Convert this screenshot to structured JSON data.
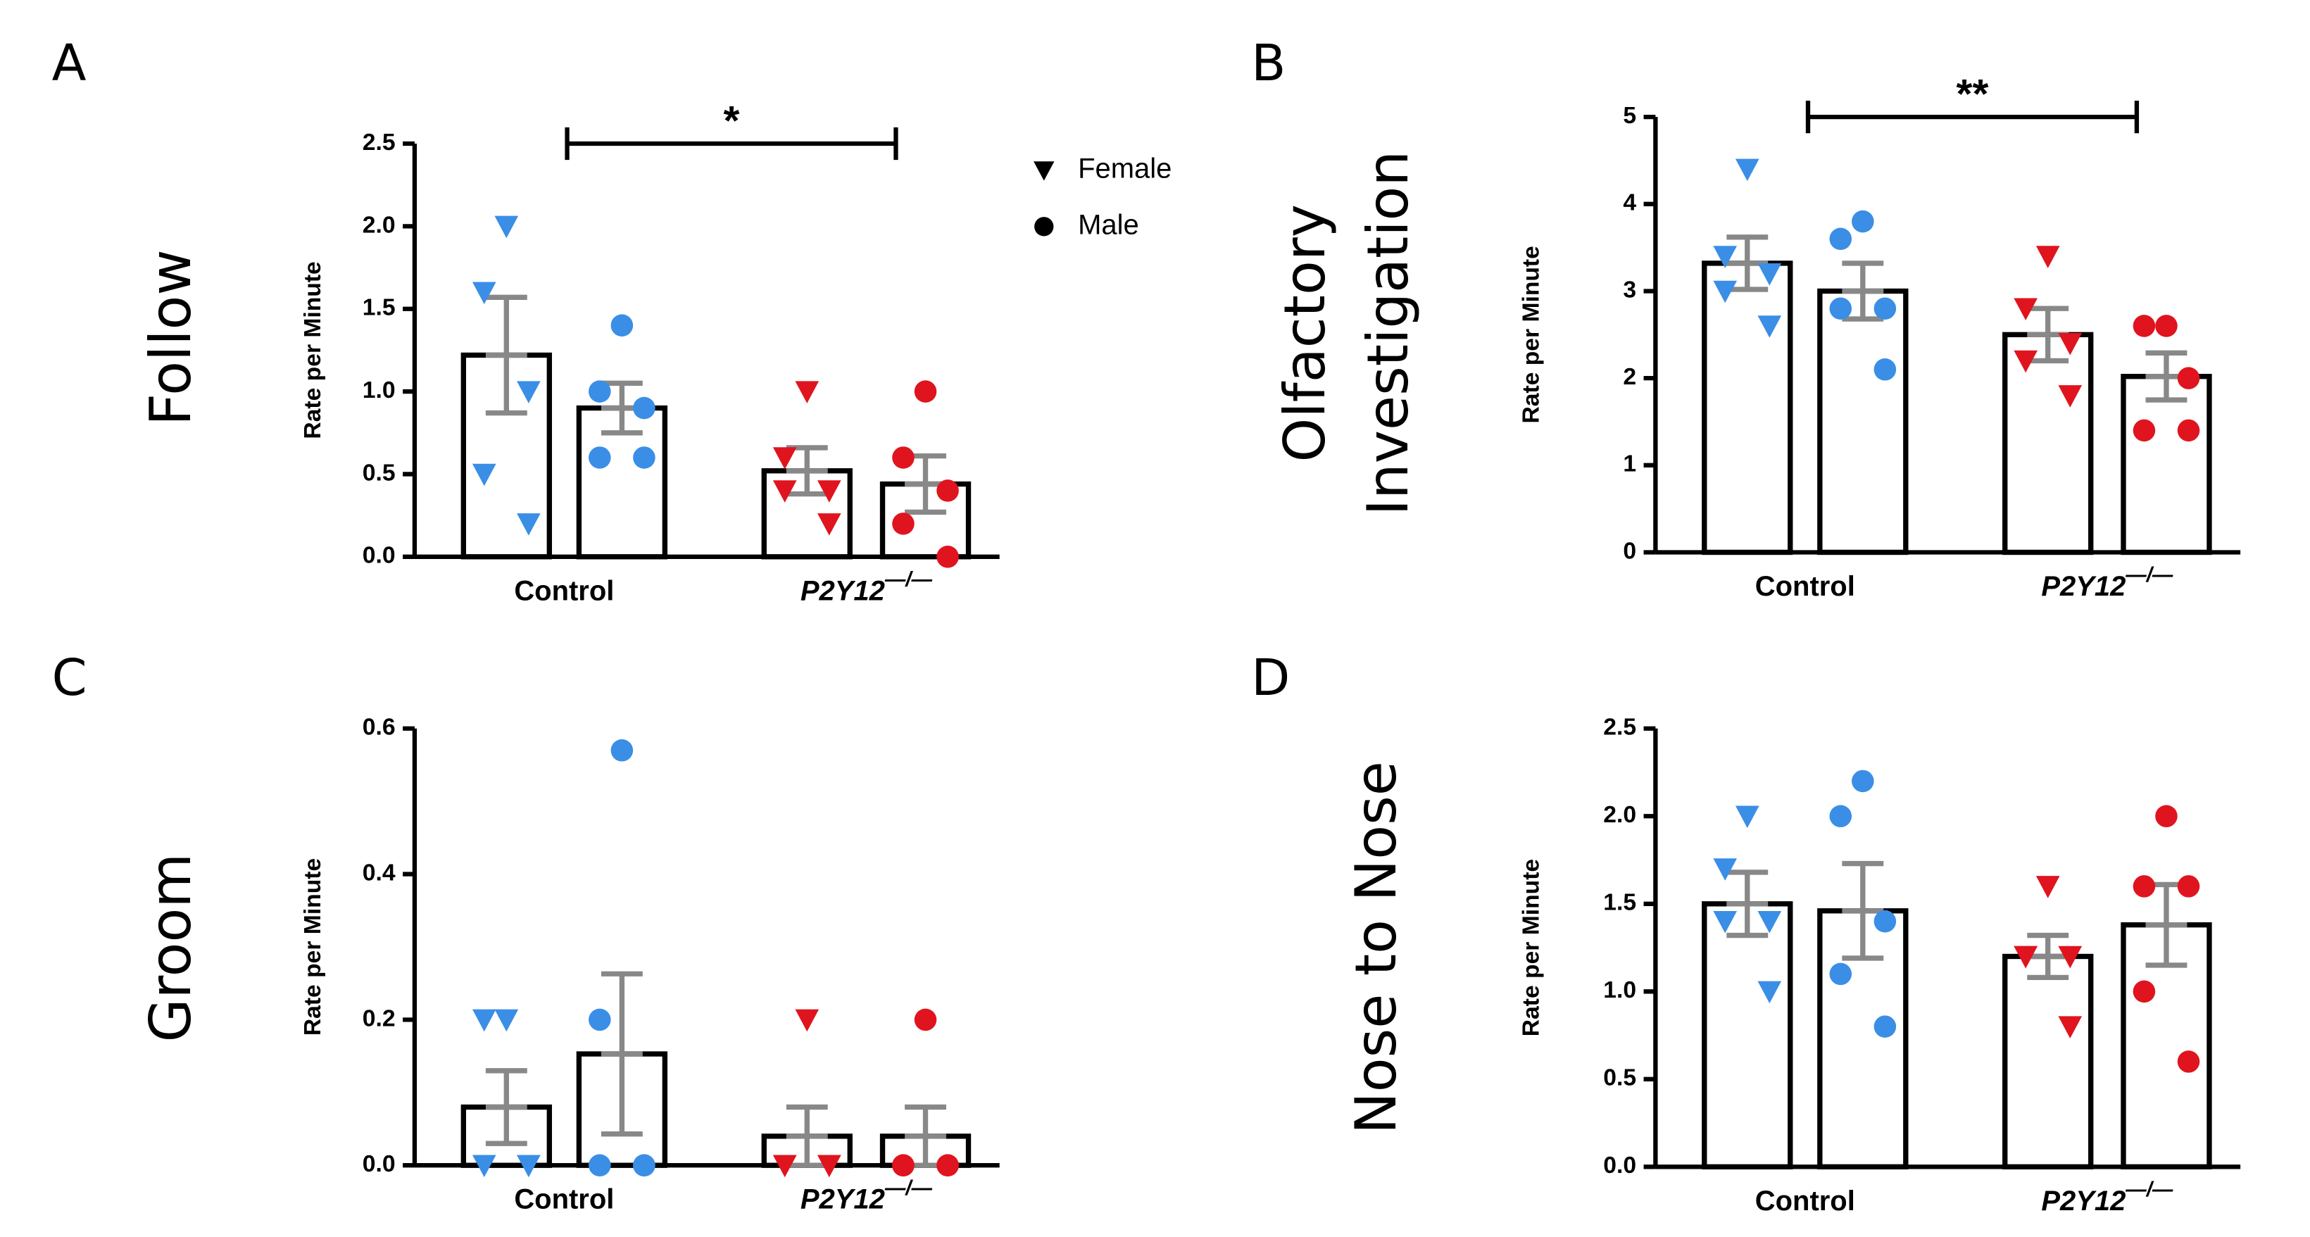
{
  "chart_data": [
    {
      "type": "bar",
      "panel": "A",
      "title_lines": [
        "Follow"
      ],
      "ylabel": "Rate per Minute",
      "categories": [
        "Control",
        "P2Y12"
      ],
      "category_superscripts": [
        null,
        "—/—"
      ],
      "category_italic": [
        false,
        true
      ],
      "group_colors": [
        "#3a8ee6",
        "#e0141e"
      ],
      "ylim": [
        0,
        2.5
      ],
      "yticks": [
        {
          "value": 0,
          "label": "0.0"
        },
        0.5,
        {
          "value": 1,
          "label": "1.0"
        },
        1.5,
        {
          "value": 2,
          "label": "2.0"
        },
        2.5
      ],
      "legend": "upper right",
      "significance": "*",
      "series": [
        {
          "name": "Female",
          "marker": "triangle",
          "values": [
            1.22,
            0.52
          ],
          "errors": [
            0.35,
            0.14
          ],
          "points": [
            [
              2.0,
              1.6,
              1.0,
              0.5,
              0.2
            ],
            [
              1.0,
              0.6,
              0.4,
              0.4,
              0.2
            ]
          ]
        },
        {
          "name": "Male",
          "marker": "circle",
          "values": [
            0.9,
            0.44
          ],
          "errors": [
            0.15,
            0.17
          ],
          "points": [
            [
              1.4,
              1.0,
              0.9,
              0.6,
              0.6
            ],
            [
              1.0,
              0.6,
              0.4,
              0.2,
              0.0
            ]
          ]
        }
      ]
    },
    {
      "type": "bar",
      "panel": "B",
      "title_lines": [
        "Olfactory",
        "Investigation"
      ],
      "ylabel": "Rate per Minute",
      "categories": [
        "Control",
        "P2Y12"
      ],
      "category_superscripts": [
        null,
        "—/—"
      ],
      "category_italic": [
        false,
        true
      ],
      "group_colors": [
        "#3a8ee6",
        "#e0141e"
      ],
      "ylim": [
        0,
        5
      ],
      "yticks": [
        0,
        1,
        2,
        3,
        4,
        5
      ],
      "significance": "**",
      "series": [
        {
          "name": "Female",
          "marker": "triangle",
          "values": [
            3.32,
            2.5
          ],
          "errors": [
            0.3,
            0.3
          ],
          "points": [
            [
              4.4,
              3.4,
              3.2,
              3.0,
              2.6
            ],
            [
              3.4,
              2.8,
              2.4,
              2.2,
              1.8
            ]
          ]
        },
        {
          "name": "Male",
          "marker": "circle",
          "values": [
            3.0,
            2.02
          ],
          "errors": [
            0.32,
            0.27
          ],
          "points": [
            [
              3.8,
              3.6,
              2.8,
              2.8,
              2.1
            ],
            [
              2.6,
              2.6,
              2.0,
              1.4,
              1.4
            ]
          ]
        }
      ]
    },
    {
      "type": "bar",
      "panel": "C",
      "title_lines": [
        "Groom"
      ],
      "ylabel": "Rate per Minute",
      "categories": [
        "Control",
        "P2Y12"
      ],
      "category_superscripts": [
        null,
        "—/—"
      ],
      "category_italic": [
        false,
        true
      ],
      "group_colors": [
        "#3a8ee6",
        "#e0141e"
      ],
      "ylim": [
        0,
        0.6
      ],
      "yticks": [
        {
          "value": 0,
          "label": "0.0"
        },
        0.2,
        0.4,
        0.6
      ],
      "series": [
        {
          "name": "Female",
          "marker": "triangle",
          "values": [
            0.08,
            0.04
          ],
          "errors": [
            0.05,
            0.04
          ],
          "points": [
            [
              0.2,
              0.2,
              0,
              0,
              0
            ],
            [
              0.2,
              0,
              0,
              0,
              0
            ]
          ]
        },
        {
          "name": "Male",
          "marker": "circle",
          "values": [
            0.153,
            0.04
          ],
          "errors": [
            0.11,
            0.04
          ],
          "points": [
            [
              0.57,
              0.2,
              0,
              0,
              0
            ],
            [
              0.2,
              0,
              0,
              0,
              0
            ]
          ]
        }
      ]
    },
    {
      "type": "bar",
      "panel": "D",
      "title_lines": [
        "Nose to Nose"
      ],
      "ylabel": "Rate per Minute",
      "categories": [
        "Control",
        "P2Y12"
      ],
      "category_superscripts": [
        null,
        "—/—"
      ],
      "category_italic": [
        false,
        true
      ],
      "group_colors": [
        "#3a8ee6",
        "#e0141e"
      ],
      "ylim": [
        0,
        2.5
      ],
      "yticks": [
        {
          "value": 0,
          "label": "0.0"
        },
        0.5,
        {
          "value": 1,
          "label": "1.0"
        },
        1.5,
        {
          "value": 2,
          "label": "2.0"
        },
        2.5
      ],
      "series": [
        {
          "name": "Female",
          "marker": "triangle",
          "values": [
            1.5,
            1.2
          ],
          "errors": [
            0.18,
            0.12
          ],
          "points": [
            [
              2.0,
              1.7,
              1.4,
              1.4,
              1.0
            ],
            [
              1.6,
              1.2,
              1.2,
              1.2,
              0.8
            ]
          ]
        },
        {
          "name": "Male",
          "marker": "circle",
          "values": [
            1.46,
            1.38
          ],
          "errors": [
            0.27,
            0.23
          ],
          "points": [
            [
              2.2,
              2.0,
              1.4,
              1.1,
              0.8
            ],
            [
              2.0,
              1.6,
              1.6,
              1.0,
              0.6
            ]
          ]
        }
      ]
    }
  ]
}
